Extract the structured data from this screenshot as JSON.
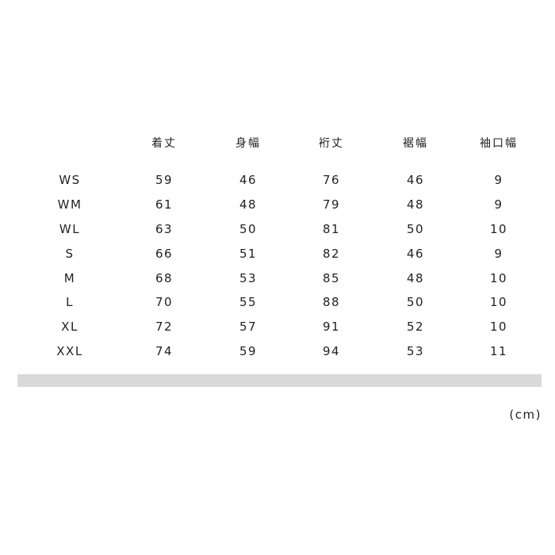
{
  "table": {
    "headers": [
      "",
      "着丈",
      "身幅",
      "裄丈",
      "裾幅",
      "袖口幅"
    ],
    "rows": [
      [
        "WS",
        "59",
        "46",
        "76",
        "46",
        "9"
      ],
      [
        "WM",
        "61",
        "48",
        "79",
        "48",
        "9"
      ],
      [
        "WL",
        "63",
        "50",
        "81",
        "50",
        "10"
      ],
      [
        "S",
        "66",
        "51",
        "82",
        "46",
        "9"
      ],
      [
        "M",
        "68",
        "53",
        "85",
        "48",
        "10"
      ],
      [
        "L",
        "70",
        "55",
        "88",
        "50",
        "10"
      ],
      [
        "XL",
        "72",
        "57",
        "91",
        "52",
        "10"
      ],
      [
        "XXL",
        "74",
        "59",
        "94",
        "53",
        "11"
      ]
    ]
  },
  "unit": "(cm)",
  "colors": {
    "divider": "#d9d9d9",
    "text": "#222222"
  }
}
